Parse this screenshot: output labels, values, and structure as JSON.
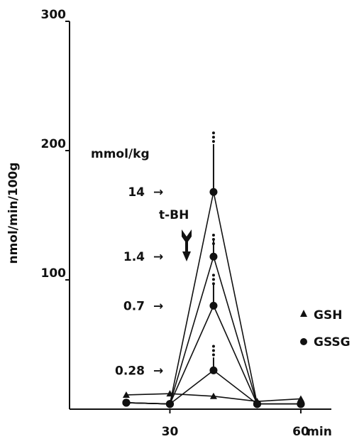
{
  "chart_data": {
    "type": "line",
    "title": "",
    "xlabel": "",
    "ylabel": "nmol/min/100g",
    "xlim": [
      0,
      70
    ],
    "ylim": [
      0,
      300
    ],
    "x_ticks": [
      {
        "value": 30,
        "label": "30"
      },
      {
        "value": 60,
        "label": "60"
      }
    ],
    "x_unit_label": "min",
    "y_ticks": [
      {
        "value": 100,
        "label": "100"
      },
      {
        "value": 200,
        "label": "200"
      },
      {
        "value": 300,
        "label": "300"
      }
    ],
    "x": [
      20,
      30,
      40,
      50,
      60
    ],
    "series": [
      {
        "name": "GSSG",
        "dose": "14",
        "marker": "circle",
        "values": [
          5,
          4,
          168,
          4,
          4
        ],
        "error_plus": [
          null,
          null,
          37,
          null,
          null
        ]
      },
      {
        "name": "GSSG",
        "dose": "1.4",
        "marker": "circle",
        "values": [
          5,
          4,
          118,
          4,
          4
        ],
        "error_plus": [
          null,
          null,
          13,
          null,
          null
        ]
      },
      {
        "name": "GSSG",
        "dose": "0.7",
        "marker": "circle",
        "values": [
          5,
          4,
          80,
          4,
          4
        ],
        "error_plus": [
          null,
          null,
          17,
          null,
          null
        ]
      },
      {
        "name": "GSSG",
        "dose": "0.28",
        "marker": "circle",
        "values": [
          5,
          4,
          30,
          4,
          4
        ],
        "error_plus": [
          null,
          null,
          10,
          null,
          null
        ]
      },
      {
        "name": "GSH",
        "marker": "triangle",
        "values": [
          11,
          12,
          10,
          6,
          8
        ]
      }
    ],
    "significance_markers": [
      {
        "x": 40,
        "y": 212,
        "count": 3
      },
      {
        "x": 40,
        "y": 133,
        "count": 3
      },
      {
        "x": 40,
        "y": 102,
        "count": 3
      },
      {
        "x": 40,
        "y": 47,
        "count": 3
      }
    ],
    "annotations": {
      "dose_unit": "mmol/kg",
      "dose_labels": [
        {
          "text": "14",
          "y": 168
        },
        {
          "text": "1.4",
          "y": 118
        },
        {
          "text": "0.7",
          "y": 80
        },
        {
          "text": "0.28",
          "y": 30
        }
      ],
      "arrow_glyph": "→",
      "treatment_label": "t-BH",
      "treatment_x": 30
    },
    "legend": {
      "placement": "right",
      "entries": [
        {
          "label": "GSH",
          "marker": "triangle"
        },
        {
          "label": "GSSG",
          "marker": "circle"
        }
      ]
    },
    "colors": {
      "ink": "#111111",
      "background": "#ffffff"
    },
    "grid": false
  }
}
